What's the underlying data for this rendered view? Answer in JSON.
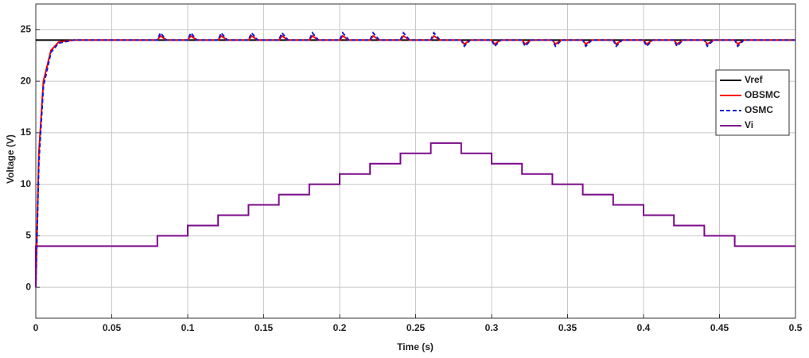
{
  "chart_data": {
    "type": "line",
    "xlabel": "Time (s)",
    "ylabel": "Voltage (V)",
    "xlim": [
      0,
      0.5
    ],
    "ylim": [
      -3,
      27.5
    ],
    "xticks": [
      0,
      0.05,
      0.1,
      0.15,
      0.2,
      0.25,
      0.3,
      0.35,
      0.4,
      0.45,
      0.5
    ],
    "yticks": [
      0,
      5,
      10,
      15,
      20,
      25
    ],
    "grid": true,
    "legend": "right",
    "series": [
      {
        "name": "Vref",
        "color": "#000000",
        "dashed": false,
        "x": [
          0,
          0.5
        ],
        "values": [
          24,
          24
        ]
      },
      {
        "name": "OBSMC",
        "color": "#ff0000",
        "dashed": false,
        "x": [
          0,
          0.002,
          0.005,
          0.01,
          0.015,
          0.025,
          0.08,
          0.082,
          0.086,
          0.1,
          0.102,
          0.106,
          0.12,
          0.122,
          0.126,
          0.14,
          0.142,
          0.146,
          0.16,
          0.162,
          0.166,
          0.18,
          0.182,
          0.186,
          0.2,
          0.202,
          0.206,
          0.22,
          0.222,
          0.226,
          0.24,
          0.242,
          0.246,
          0.26,
          0.262,
          0.266,
          0.28,
          0.282,
          0.286,
          0.3,
          0.302,
          0.306,
          0.32,
          0.322,
          0.326,
          0.34,
          0.342,
          0.346,
          0.36,
          0.362,
          0.366,
          0.38,
          0.382,
          0.386,
          0.4,
          0.402,
          0.406,
          0.42,
          0.422,
          0.426,
          0.44,
          0.442,
          0.446,
          0.46,
          0.462,
          0.466,
          0.5
        ],
        "values": [
          0,
          13,
          20,
          23,
          23.8,
          24,
          24,
          24.4,
          24,
          24,
          24.4,
          24,
          24,
          24.4,
          24,
          24,
          24.4,
          24,
          24,
          24.4,
          24,
          24,
          24.4,
          24,
          24,
          24.4,
          24,
          24,
          24.4,
          24,
          24,
          24.4,
          24,
          24,
          24.4,
          24,
          24,
          23.6,
          24,
          24,
          23.6,
          24,
          24,
          23.6,
          24,
          24,
          23.6,
          24,
          24,
          23.6,
          24,
          24,
          23.6,
          24,
          24,
          23.6,
          24,
          24,
          23.6,
          24,
          24,
          23.6,
          24,
          24,
          23.6,
          24,
          24
        ]
      },
      {
        "name": "OSMC",
        "color": "#1a1acc",
        "dashed": true,
        "x": [
          0,
          0.002,
          0.005,
          0.01,
          0.015,
          0.025,
          0.08,
          0.082,
          0.086,
          0.1,
          0.102,
          0.106,
          0.12,
          0.122,
          0.126,
          0.14,
          0.142,
          0.146,
          0.16,
          0.162,
          0.166,
          0.18,
          0.182,
          0.186,
          0.2,
          0.202,
          0.206,
          0.22,
          0.222,
          0.226,
          0.24,
          0.242,
          0.246,
          0.26,
          0.262,
          0.266,
          0.28,
          0.282,
          0.286,
          0.3,
          0.302,
          0.306,
          0.32,
          0.322,
          0.326,
          0.34,
          0.342,
          0.346,
          0.36,
          0.362,
          0.366,
          0.38,
          0.382,
          0.386,
          0.4,
          0.402,
          0.406,
          0.42,
          0.422,
          0.426,
          0.44,
          0.442,
          0.446,
          0.46,
          0.462,
          0.466,
          0.5
        ],
        "values": [
          0,
          12,
          19.5,
          22.8,
          23.7,
          24,
          24,
          24.7,
          24,
          24,
          24.7,
          24,
          24,
          24.7,
          24,
          24,
          24.7,
          24,
          24,
          24.7,
          24,
          24,
          24.7,
          24,
          24,
          24.7,
          24,
          24,
          24.7,
          24,
          24,
          24.7,
          24,
          24,
          24.7,
          24,
          24,
          23.4,
          24,
          24,
          23.4,
          24,
          24,
          23.4,
          24,
          24,
          23.4,
          24,
          24,
          23.4,
          24,
          24,
          23.4,
          24,
          24,
          23.4,
          24,
          24,
          23.4,
          24,
          24,
          23.4,
          24,
          24,
          23.4,
          24,
          24
        ]
      },
      {
        "name": "Vi",
        "color": "#7b0a8a",
        "dashed": false,
        "x": [
          0,
          0,
          0.08,
          0.08,
          0.1,
          0.1,
          0.12,
          0.12,
          0.14,
          0.14,
          0.16,
          0.16,
          0.18,
          0.18,
          0.2,
          0.2,
          0.22,
          0.22,
          0.24,
          0.24,
          0.26,
          0.26,
          0.28,
          0.28,
          0.3,
          0.3,
          0.32,
          0.32,
          0.34,
          0.34,
          0.36,
          0.36,
          0.38,
          0.38,
          0.4,
          0.4,
          0.42,
          0.42,
          0.44,
          0.44,
          0.46,
          0.46,
          0.5
        ],
        "values": [
          0,
          4,
          4,
          5,
          5,
          6,
          6,
          7,
          7,
          8,
          8,
          9,
          9,
          10,
          10,
          11,
          11,
          12,
          12,
          13,
          13,
          14,
          14,
          13,
          13,
          12,
          12,
          11,
          11,
          10,
          10,
          9,
          9,
          8,
          8,
          7,
          7,
          6,
          6,
          5,
          5,
          4,
          4
        ]
      }
    ]
  }
}
